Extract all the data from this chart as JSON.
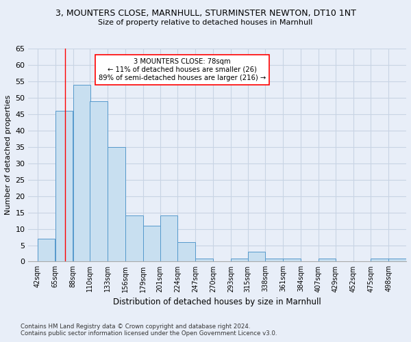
{
  "title": "3, MOUNTERS CLOSE, MARNHULL, STURMINSTER NEWTON, DT10 1NT",
  "subtitle": "Size of property relative to detached houses in Marnhull",
  "xlabel": "Distribution of detached houses by size in Marnhull",
  "ylabel": "Number of detached properties",
  "categories": [
    "42sqm",
    "65sqm",
    "88sqm",
    "110sqm",
    "133sqm",
    "156sqm",
    "179sqm",
    "201sqm",
    "224sqm",
    "247sqm",
    "270sqm",
    "293sqm",
    "315sqm",
    "338sqm",
    "361sqm",
    "384sqm",
    "407sqm",
    "429sqm",
    "452sqm",
    "475sqm",
    "498sqm"
  ],
  "values": [
    7,
    46,
    54,
    49,
    35,
    14,
    11,
    14,
    6,
    1,
    0,
    1,
    3,
    1,
    1,
    0,
    1,
    0,
    0,
    1,
    1
  ],
  "bar_color": "#c8dff0",
  "bar_edge_color": "#5599cc",
  "grid_color": "#c8d4e4",
  "background_color": "#e8eef8",
  "red_line_x": 78,
  "annotation_title": "3 MOUNTERS CLOSE: 78sqm",
  "annotation_line1": "← 11% of detached houses are smaller (26)",
  "annotation_line2": "89% of semi-detached houses are larger (216) →",
  "ylim": [
    0,
    65
  ],
  "yticks": [
    0,
    5,
    10,
    15,
    20,
    25,
    30,
    35,
    40,
    45,
    50,
    55,
    60,
    65
  ],
  "footnote1": "Contains HM Land Registry data © Crown copyright and database right 2024.",
  "footnote2": "Contains public sector information licensed under the Open Government Licence v3.0.",
  "bin_starts": [
    42,
    65,
    88,
    110,
    133,
    156,
    179,
    201,
    224,
    247,
    270,
    293,
    315,
    338,
    361,
    384,
    407,
    429,
    452,
    475,
    498
  ],
  "bin_width": 23,
  "xlim_min": 30,
  "xlim_max": 521
}
